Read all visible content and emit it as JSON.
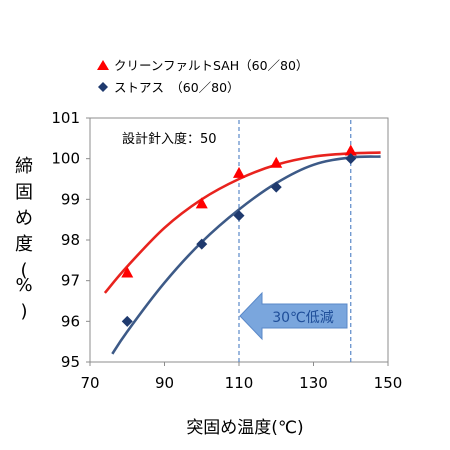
{
  "chart_data": {
    "type": "scatter",
    "xlabel": "突固め温度(℃)",
    "ylabel": "締固め度(%)",
    "xlim": [
      70,
      150
    ],
    "ylim": [
      95,
      101
    ],
    "xticks": [
      70,
      90,
      110,
      130,
      150
    ],
    "yticks": [
      95,
      96,
      97,
      98,
      99,
      100,
      101
    ],
    "xtick_labels": [
      "70",
      "90",
      "110",
      "130",
      "150"
    ],
    "ytick_labels": [
      "95",
      "96",
      "97",
      "98",
      "99",
      "100",
      "101"
    ],
    "grid": false,
    "legend_position": "top-left, above plot",
    "annotation_text": "設計針入度：50",
    "arrow_label": "30℃低減",
    "reference_lines_x": [
      110,
      140
    ],
    "series": [
      {
        "name": "クリーンファルトSAH（60／80）",
        "marker": "triangle",
        "color": "#ff0000",
        "points": [
          {
            "x": 80,
            "y": 97.2
          },
          {
            "x": 100,
            "y": 98.9
          },
          {
            "x": 110,
            "y": 99.65
          },
          {
            "x": 120,
            "y": 99.9
          },
          {
            "x": 140,
            "y": 100.2
          }
        ],
        "trend": [
          {
            "x": 74,
            "y": 96.7
          },
          {
            "x": 80,
            "y": 97.35
          },
          {
            "x": 90,
            "y": 98.3
          },
          {
            "x": 100,
            "y": 99.0
          },
          {
            "x": 110,
            "y": 99.5
          },
          {
            "x": 120,
            "y": 99.85
          },
          {
            "x": 130,
            "y": 100.05
          },
          {
            "x": 140,
            "y": 100.13
          },
          {
            "x": 148,
            "y": 100.15
          }
        ]
      },
      {
        "name": "ストアス　（60／80）",
        "marker": "diamond",
        "color": "#1f3a6e",
        "points": [
          {
            "x": 80,
            "y": 96.0
          },
          {
            "x": 100,
            "y": 97.9
          },
          {
            "x": 110,
            "y": 98.6
          },
          {
            "x": 120,
            "y": 99.3
          },
          {
            "x": 140,
            "y": 100.0
          }
        ],
        "trend": [
          {
            "x": 76,
            "y": 95.2
          },
          {
            "x": 80,
            "y": 95.75
          },
          {
            "x": 90,
            "y": 96.95
          },
          {
            "x": 100,
            "y": 97.95
          },
          {
            "x": 110,
            "y": 98.75
          },
          {
            "x": 120,
            "y": 99.4
          },
          {
            "x": 130,
            "y": 99.85
          },
          {
            "x": 140,
            "y": 100.03
          },
          {
            "x": 148,
            "y": 100.05
          }
        ]
      }
    ]
  }
}
